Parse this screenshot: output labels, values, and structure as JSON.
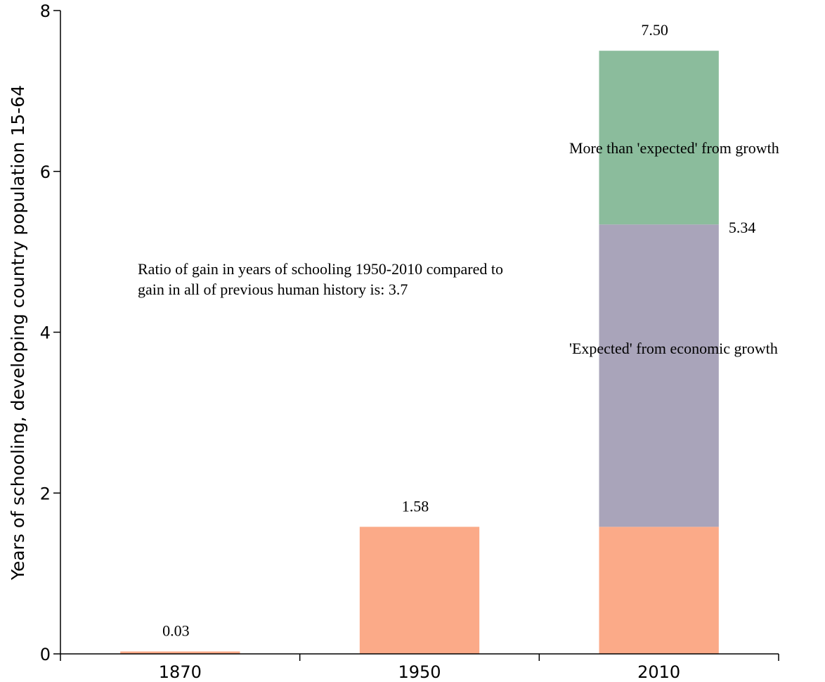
{
  "chart_data": {
    "type": "bar",
    "categories": [
      "1870",
      "1950",
      "2010"
    ],
    "series": [
      {
        "values": [
          0.03,
          1.58,
          1.58
        ],
        "color": "#fbaa88"
      },
      {
        "values": [
          0,
          0,
          3.76
        ],
        "color": "#a9a4ba"
      },
      {
        "values": [
          0,
          0,
          2.16
        ],
        "color": "#8bbc9c"
      }
    ],
    "ylabel": "Years of schooling, developing country population 15-64",
    "xlabel": "",
    "ylim": [
      0,
      8
    ],
    "yticks": [
      "0",
      "2",
      "4",
      "6",
      "8"
    ],
    "grid": false,
    "data_labels": [
      {
        "text": "0.03",
        "category": "1870",
        "value": 0.03
      },
      {
        "text": "1.58",
        "category": "1950",
        "value": 1.58
      },
      {
        "text": "7.50",
        "category": "2010",
        "value": 7.5
      },
      {
        "text": "5.34",
        "category": "2010",
        "value": 5.34
      }
    ],
    "annotations": {
      "ratio_line1": "Ratio of gain in years of schooling 1950-2010 compared to",
      "ratio_line2": "gain in all of previous human history is: 3.7",
      "expected": "'Expected' from economic growth",
      "more_than": "More than 'expected' from growth"
    }
  }
}
